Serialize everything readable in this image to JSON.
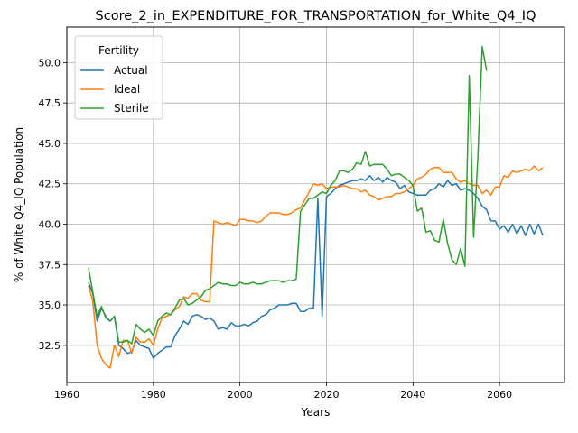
{
  "chart_data": {
    "type": "line",
    "title": "Score_2_in_EXPENDITURE_FOR_TRANSPORTATION_for_White_Q4_IQ",
    "xlabel": "Years",
    "ylabel": "% of White Q4_IQ Population",
    "xlim": [
      1960,
      2075
    ],
    "ylim": [
      30.2,
      52.2
    ],
    "x_ticks": [
      1960,
      1980,
      2000,
      2020,
      2040,
      2060
    ],
    "y_ticks": [
      32.5,
      35.0,
      37.5,
      40.0,
      42.5,
      45.0,
      47.5,
      50.0
    ],
    "x_tick_labels": [
      "1960",
      "1980",
      "2000",
      "2020",
      "2040",
      "2060"
    ],
    "y_tick_labels": [
      "32.5",
      "35.0",
      "37.5",
      "40.0",
      "42.5",
      "45.0",
      "47.5",
      "50.0"
    ],
    "grid": true,
    "legend": {
      "title": "Fertility",
      "position": "upper-left"
    },
    "series": [
      {
        "name": "Actual",
        "color": "#1f77b4",
        "points": [
          [
            1965,
            36.4
          ],
          [
            1966,
            35.7
          ],
          [
            1967,
            34.0
          ],
          [
            1968,
            34.8
          ],
          [
            1969,
            34.3
          ],
          [
            1970,
            34.0
          ],
          [
            1971,
            34.3
          ],
          [
            1972,
            32.5
          ],
          [
            1973,
            32.3
          ],
          [
            1974,
            32.0
          ],
          [
            1975,
            32.1
          ],
          [
            1976,
            32.8
          ],
          [
            1977,
            32.5
          ],
          [
            1978,
            32.4
          ],
          [
            1979,
            32.3
          ],
          [
            1980,
            31.7
          ],
          [
            1981,
            32.0
          ],
          [
            1982,
            32.2
          ],
          [
            1983,
            32.4
          ],
          [
            1984,
            32.4
          ],
          [
            1985,
            33.1
          ],
          [
            1986,
            33.5
          ],
          [
            1987,
            34.0
          ],
          [
            1988,
            33.8
          ],
          [
            1989,
            34.3
          ],
          [
            1990,
            34.4
          ],
          [
            1991,
            34.3
          ],
          [
            1992,
            34.1
          ],
          [
            1993,
            34.2
          ],
          [
            1994,
            34.0
          ],
          [
            1995,
            33.5
          ],
          [
            1996,
            33.6
          ],
          [
            1997,
            33.5
          ],
          [
            1998,
            33.9
          ],
          [
            1999,
            33.7
          ],
          [
            2000,
            33.7
          ],
          [
            2001,
            33.8
          ],
          [
            2002,
            33.7
          ],
          [
            2003,
            33.9
          ],
          [
            2004,
            34.0
          ],
          [
            2005,
            34.3
          ],
          [
            2006,
            34.4
          ],
          [
            2007,
            34.7
          ],
          [
            2008,
            34.8
          ],
          [
            2009,
            35.0
          ],
          [
            2010,
            35.0
          ],
          [
            2011,
            35.0
          ],
          [
            2012,
            35.1
          ],
          [
            2013,
            35.1
          ],
          [
            2014,
            34.6
          ],
          [
            2015,
            34.6
          ],
          [
            2016,
            34.8
          ],
          [
            2017,
            34.8
          ],
          [
            2018,
            41.6
          ],
          [
            2019,
            34.3
          ],
          [
            2020,
            41.7
          ],
          [
            2021,
            41.9
          ],
          [
            2022,
            42.2
          ],
          [
            2023,
            42.4
          ],
          [
            2024,
            42.5
          ],
          [
            2025,
            42.6
          ],
          [
            2026,
            42.7
          ],
          [
            2027,
            42.7
          ],
          [
            2028,
            42.8
          ],
          [
            2029,
            42.7
          ],
          [
            2030,
            43.0
          ],
          [
            2031,
            42.7
          ],
          [
            2032,
            42.9
          ],
          [
            2033,
            42.6
          ],
          [
            2034,
            42.9
          ],
          [
            2035,
            42.7
          ],
          [
            2036,
            42.6
          ],
          [
            2037,
            42.2
          ],
          [
            2038,
            42.4
          ],
          [
            2039,
            42.0
          ],
          [
            2040,
            41.9
          ],
          [
            2041,
            41.8
          ],
          [
            2042,
            41.8
          ],
          [
            2043,
            41.8
          ],
          [
            2044,
            42.1
          ],
          [
            2045,
            42.2
          ],
          [
            2046,
            42.5
          ],
          [
            2047,
            42.3
          ],
          [
            2048,
            42.7
          ],
          [
            2049,
            42.4
          ],
          [
            2050,
            42.5
          ],
          [
            2051,
            42.1
          ],
          [
            2052,
            42.2
          ],
          [
            2053,
            42.1
          ],
          [
            2054,
            41.9
          ],
          [
            2055,
            41.6
          ],
          [
            2056,
            41.1
          ],
          [
            2057,
            40.9
          ],
          [
            2058,
            40.2
          ],
          [
            2059,
            40.2
          ],
          [
            2060,
            39.7
          ],
          [
            2061,
            39.9
          ],
          [
            2062,
            39.5
          ],
          [
            2063,
            40.0
          ],
          [
            2064,
            39.4
          ],
          [
            2065,
            39.9
          ],
          [
            2066,
            39.3
          ],
          [
            2067,
            40.0
          ],
          [
            2068,
            39.4
          ],
          [
            2069,
            40.0
          ],
          [
            2070,
            39.3
          ]
        ]
      },
      {
        "name": "Ideal",
        "color": "#ff7f0e",
        "points": [
          [
            1965,
            36.2
          ],
          [
            1966,
            35.2
          ],
          [
            1967,
            32.5
          ],
          [
            1968,
            31.7
          ],
          [
            1969,
            31.3
          ],
          [
            1970,
            31.1
          ],
          [
            1971,
            32.5
          ],
          [
            1972,
            31.8
          ],
          [
            1973,
            32.8
          ],
          [
            1974,
            32.8
          ],
          [
            1975,
            32.0
          ],
          [
            1976,
            33.0
          ],
          [
            1977,
            32.7
          ],
          [
            1978,
            32.7
          ],
          [
            1979,
            32.9
          ],
          [
            1980,
            32.5
          ],
          [
            1981,
            33.5
          ],
          [
            1982,
            34.2
          ],
          [
            1983,
            34.3
          ],
          [
            1984,
            34.4
          ],
          [
            1985,
            34.7
          ],
          [
            1986,
            34.9
          ],
          [
            1987,
            35.5
          ],
          [
            1988,
            35.4
          ],
          [
            1989,
            35.7
          ],
          [
            1990,
            35.7
          ],
          [
            1991,
            35.3
          ],
          [
            1992,
            35.2
          ],
          [
            1993,
            35.2
          ],
          [
            1994,
            40.2
          ],
          [
            1995,
            40.1
          ],
          [
            1996,
            40.0
          ],
          [
            1997,
            40.1
          ],
          [
            1998,
            40.0
          ],
          [
            1999,
            39.9
          ],
          [
            2000,
            40.3
          ],
          [
            2001,
            40.3
          ],
          [
            2002,
            40.2
          ],
          [
            2003,
            40.2
          ],
          [
            2004,
            40.1
          ],
          [
            2005,
            40.2
          ],
          [
            2006,
            40.5
          ],
          [
            2007,
            40.7
          ],
          [
            2008,
            40.7
          ],
          [
            2009,
            40.7
          ],
          [
            2010,
            40.6
          ],
          [
            2011,
            40.6
          ],
          [
            2012,
            40.7
          ],
          [
            2013,
            40.9
          ],
          [
            2014,
            41.0
          ],
          [
            2015,
            41.5
          ],
          [
            2016,
            42.0
          ],
          [
            2017,
            42.5
          ],
          [
            2018,
            42.4
          ],
          [
            2019,
            42.5
          ],
          [
            2020,
            42.2
          ],
          [
            2021,
            42.3
          ],
          [
            2022,
            42.3
          ],
          [
            2023,
            42.3
          ],
          [
            2024,
            42.4
          ],
          [
            2025,
            42.3
          ],
          [
            2026,
            42.2
          ],
          [
            2027,
            42.2
          ],
          [
            2028,
            42.0
          ],
          [
            2029,
            42.1
          ],
          [
            2030,
            41.8
          ],
          [
            2031,
            41.7
          ],
          [
            2032,
            41.5
          ],
          [
            2033,
            41.6
          ],
          [
            2034,
            41.7
          ],
          [
            2035,
            41.7
          ],
          [
            2036,
            41.9
          ],
          [
            2037,
            41.9
          ],
          [
            2038,
            42.0
          ],
          [
            2039,
            42.2
          ],
          [
            2040,
            42.4
          ],
          [
            2041,
            42.8
          ],
          [
            2042,
            42.9
          ],
          [
            2043,
            43.1
          ],
          [
            2044,
            43.4
          ],
          [
            2045,
            43.5
          ],
          [
            2046,
            43.5
          ],
          [
            2047,
            43.2
          ],
          [
            2048,
            43.2
          ],
          [
            2049,
            43.2
          ],
          [
            2050,
            42.8
          ],
          [
            2051,
            42.6
          ],
          [
            2052,
            42.7
          ],
          [
            2053,
            42.5
          ],
          [
            2054,
            42.4
          ],
          [
            2055,
            42.4
          ],
          [
            2056,
            41.9
          ],
          [
            2057,
            42.1
          ],
          [
            2058,
            41.8
          ],
          [
            2059,
            42.3
          ],
          [
            2060,
            42.3
          ],
          [
            2061,
            43.0
          ],
          [
            2062,
            42.9
          ],
          [
            2063,
            43.3
          ],
          [
            2064,
            43.2
          ],
          [
            2065,
            43.3
          ],
          [
            2066,
            43.4
          ],
          [
            2067,
            43.3
          ],
          [
            2068,
            43.6
          ],
          [
            2069,
            43.3
          ],
          [
            2070,
            43.5
          ]
        ]
      },
      {
        "name": "Sterile",
        "color": "#2ca02c",
        "points": [
          [
            1965,
            37.3
          ],
          [
            1966,
            35.8
          ],
          [
            1967,
            34.3
          ],
          [
            1968,
            34.9
          ],
          [
            1969,
            34.2
          ],
          [
            1970,
            34.0
          ],
          [
            1971,
            34.3
          ],
          [
            1972,
            32.7
          ],
          [
            1973,
            32.7
          ],
          [
            1974,
            32.8
          ],
          [
            1975,
            32.6
          ],
          [
            1976,
            33.8
          ],
          [
            1977,
            33.5
          ],
          [
            1978,
            33.3
          ],
          [
            1979,
            33.5
          ],
          [
            1980,
            33.1
          ],
          [
            1981,
            34.0
          ],
          [
            1982,
            34.3
          ],
          [
            1983,
            34.5
          ],
          [
            1984,
            34.4
          ],
          [
            1985,
            34.8
          ],
          [
            1986,
            35.3
          ],
          [
            1987,
            35.4
          ],
          [
            1988,
            35.0
          ],
          [
            1989,
            35.1
          ],
          [
            1990,
            35.3
          ],
          [
            1991,
            35.5
          ],
          [
            1992,
            35.9
          ],
          [
            1993,
            36.0
          ],
          [
            1994,
            36.2
          ],
          [
            1995,
            36.4
          ],
          [
            1996,
            36.3
          ],
          [
            1997,
            36.3
          ],
          [
            1998,
            36.2
          ],
          [
            1999,
            36.2
          ],
          [
            2000,
            36.4
          ],
          [
            2001,
            36.3
          ],
          [
            2002,
            36.3
          ],
          [
            2003,
            36.4
          ],
          [
            2004,
            36.3
          ],
          [
            2005,
            36.3
          ],
          [
            2006,
            36.4
          ],
          [
            2007,
            36.5
          ],
          [
            2008,
            36.5
          ],
          [
            2009,
            36.5
          ],
          [
            2010,
            36.4
          ],
          [
            2011,
            36.5
          ],
          [
            2012,
            36.5
          ],
          [
            2013,
            36.6
          ],
          [
            2014,
            40.8
          ],
          [
            2015,
            41.2
          ],
          [
            2016,
            41.6
          ],
          [
            2017,
            41.6
          ],
          [
            2018,
            41.8
          ],
          [
            2019,
            42.0
          ],
          [
            2020,
            41.9
          ],
          [
            2021,
            42.4
          ],
          [
            2022,
            42.7
          ],
          [
            2023,
            43.3
          ],
          [
            2024,
            43.3
          ],
          [
            2025,
            43.2
          ],
          [
            2026,
            43.4
          ],
          [
            2027,
            43.8
          ],
          [
            2028,
            43.7
          ],
          [
            2029,
            44.5
          ],
          [
            2030,
            43.6
          ],
          [
            2031,
            43.7
          ],
          [
            2032,
            43.7
          ],
          [
            2033,
            43.7
          ],
          [
            2034,
            43.4
          ],
          [
            2035,
            43.0
          ],
          [
            2036,
            43.1
          ],
          [
            2037,
            43.1
          ],
          [
            2038,
            42.9
          ],
          [
            2039,
            42.7
          ],
          [
            2040,
            42.4
          ],
          [
            2041,
            40.8
          ],
          [
            2042,
            41.0
          ],
          [
            2043,
            39.5
          ],
          [
            2044,
            39.6
          ],
          [
            2045,
            39.0
          ],
          [
            2046,
            38.9
          ],
          [
            2047,
            40.3
          ],
          [
            2048,
            38.8
          ],
          [
            2049,
            37.8
          ],
          [
            2050,
            37.5
          ],
          [
            2051,
            38.5
          ],
          [
            2052,
            37.4
          ],
          [
            2053,
            49.2
          ],
          [
            2054,
            39.2
          ],
          [
            2055,
            44.2
          ],
          [
            2056,
            51.0
          ],
          [
            2057,
            49.5
          ]
        ]
      }
    ]
  }
}
